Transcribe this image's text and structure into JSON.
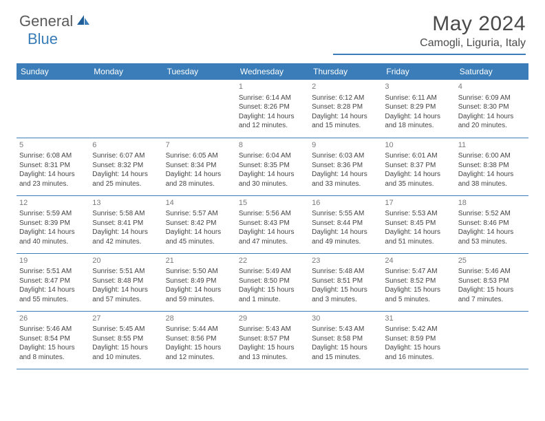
{
  "logo": {
    "part1": "General",
    "part2": "Blue"
  },
  "title": "May 2024",
  "location": "Camogli, Liguria, Italy",
  "colors": {
    "header_bg": "#3a7db8",
    "header_text": "#ffffff",
    "border": "#3a7db8",
    "text": "#444444",
    "daynum": "#7a7a7a",
    "logo_gray": "#5a5a5a",
    "logo_blue": "#3a7db8",
    "background": "#ffffff"
  },
  "day_headers": [
    "Sunday",
    "Monday",
    "Tuesday",
    "Wednesday",
    "Thursday",
    "Friday",
    "Saturday"
  ],
  "weeks": [
    [
      {
        "n": "",
        "sr": "",
        "ss": "",
        "dl": ""
      },
      {
        "n": "",
        "sr": "",
        "ss": "",
        "dl": ""
      },
      {
        "n": "",
        "sr": "",
        "ss": "",
        "dl": ""
      },
      {
        "n": "1",
        "sr": "Sunrise: 6:14 AM",
        "ss": "Sunset: 8:26 PM",
        "dl": "Daylight: 14 hours and 12 minutes."
      },
      {
        "n": "2",
        "sr": "Sunrise: 6:12 AM",
        "ss": "Sunset: 8:28 PM",
        "dl": "Daylight: 14 hours and 15 minutes."
      },
      {
        "n": "3",
        "sr": "Sunrise: 6:11 AM",
        "ss": "Sunset: 8:29 PM",
        "dl": "Daylight: 14 hours and 18 minutes."
      },
      {
        "n": "4",
        "sr": "Sunrise: 6:09 AM",
        "ss": "Sunset: 8:30 PM",
        "dl": "Daylight: 14 hours and 20 minutes."
      }
    ],
    [
      {
        "n": "5",
        "sr": "Sunrise: 6:08 AM",
        "ss": "Sunset: 8:31 PM",
        "dl": "Daylight: 14 hours and 23 minutes."
      },
      {
        "n": "6",
        "sr": "Sunrise: 6:07 AM",
        "ss": "Sunset: 8:32 PM",
        "dl": "Daylight: 14 hours and 25 minutes."
      },
      {
        "n": "7",
        "sr": "Sunrise: 6:05 AM",
        "ss": "Sunset: 8:34 PM",
        "dl": "Daylight: 14 hours and 28 minutes."
      },
      {
        "n": "8",
        "sr": "Sunrise: 6:04 AM",
        "ss": "Sunset: 8:35 PM",
        "dl": "Daylight: 14 hours and 30 minutes."
      },
      {
        "n": "9",
        "sr": "Sunrise: 6:03 AM",
        "ss": "Sunset: 8:36 PM",
        "dl": "Daylight: 14 hours and 33 minutes."
      },
      {
        "n": "10",
        "sr": "Sunrise: 6:01 AM",
        "ss": "Sunset: 8:37 PM",
        "dl": "Daylight: 14 hours and 35 minutes."
      },
      {
        "n": "11",
        "sr": "Sunrise: 6:00 AM",
        "ss": "Sunset: 8:38 PM",
        "dl": "Daylight: 14 hours and 38 minutes."
      }
    ],
    [
      {
        "n": "12",
        "sr": "Sunrise: 5:59 AM",
        "ss": "Sunset: 8:39 PM",
        "dl": "Daylight: 14 hours and 40 minutes."
      },
      {
        "n": "13",
        "sr": "Sunrise: 5:58 AM",
        "ss": "Sunset: 8:41 PM",
        "dl": "Daylight: 14 hours and 42 minutes."
      },
      {
        "n": "14",
        "sr": "Sunrise: 5:57 AM",
        "ss": "Sunset: 8:42 PM",
        "dl": "Daylight: 14 hours and 45 minutes."
      },
      {
        "n": "15",
        "sr": "Sunrise: 5:56 AM",
        "ss": "Sunset: 8:43 PM",
        "dl": "Daylight: 14 hours and 47 minutes."
      },
      {
        "n": "16",
        "sr": "Sunrise: 5:55 AM",
        "ss": "Sunset: 8:44 PM",
        "dl": "Daylight: 14 hours and 49 minutes."
      },
      {
        "n": "17",
        "sr": "Sunrise: 5:53 AM",
        "ss": "Sunset: 8:45 PM",
        "dl": "Daylight: 14 hours and 51 minutes."
      },
      {
        "n": "18",
        "sr": "Sunrise: 5:52 AM",
        "ss": "Sunset: 8:46 PM",
        "dl": "Daylight: 14 hours and 53 minutes."
      }
    ],
    [
      {
        "n": "19",
        "sr": "Sunrise: 5:51 AM",
        "ss": "Sunset: 8:47 PM",
        "dl": "Daylight: 14 hours and 55 minutes."
      },
      {
        "n": "20",
        "sr": "Sunrise: 5:51 AM",
        "ss": "Sunset: 8:48 PM",
        "dl": "Daylight: 14 hours and 57 minutes."
      },
      {
        "n": "21",
        "sr": "Sunrise: 5:50 AM",
        "ss": "Sunset: 8:49 PM",
        "dl": "Daylight: 14 hours and 59 minutes."
      },
      {
        "n": "22",
        "sr": "Sunrise: 5:49 AM",
        "ss": "Sunset: 8:50 PM",
        "dl": "Daylight: 15 hours and 1 minute."
      },
      {
        "n": "23",
        "sr": "Sunrise: 5:48 AM",
        "ss": "Sunset: 8:51 PM",
        "dl": "Daylight: 15 hours and 3 minutes."
      },
      {
        "n": "24",
        "sr": "Sunrise: 5:47 AM",
        "ss": "Sunset: 8:52 PM",
        "dl": "Daylight: 15 hours and 5 minutes."
      },
      {
        "n": "25",
        "sr": "Sunrise: 5:46 AM",
        "ss": "Sunset: 8:53 PM",
        "dl": "Daylight: 15 hours and 7 minutes."
      }
    ],
    [
      {
        "n": "26",
        "sr": "Sunrise: 5:46 AM",
        "ss": "Sunset: 8:54 PM",
        "dl": "Daylight: 15 hours and 8 minutes."
      },
      {
        "n": "27",
        "sr": "Sunrise: 5:45 AM",
        "ss": "Sunset: 8:55 PM",
        "dl": "Daylight: 15 hours and 10 minutes."
      },
      {
        "n": "28",
        "sr": "Sunrise: 5:44 AM",
        "ss": "Sunset: 8:56 PM",
        "dl": "Daylight: 15 hours and 12 minutes."
      },
      {
        "n": "29",
        "sr": "Sunrise: 5:43 AM",
        "ss": "Sunset: 8:57 PM",
        "dl": "Daylight: 15 hours and 13 minutes."
      },
      {
        "n": "30",
        "sr": "Sunrise: 5:43 AM",
        "ss": "Sunset: 8:58 PM",
        "dl": "Daylight: 15 hours and 15 minutes."
      },
      {
        "n": "31",
        "sr": "Sunrise: 5:42 AM",
        "ss": "Sunset: 8:59 PM",
        "dl": "Daylight: 15 hours and 16 minutes."
      },
      {
        "n": "",
        "sr": "",
        "ss": "",
        "dl": ""
      }
    ]
  ]
}
